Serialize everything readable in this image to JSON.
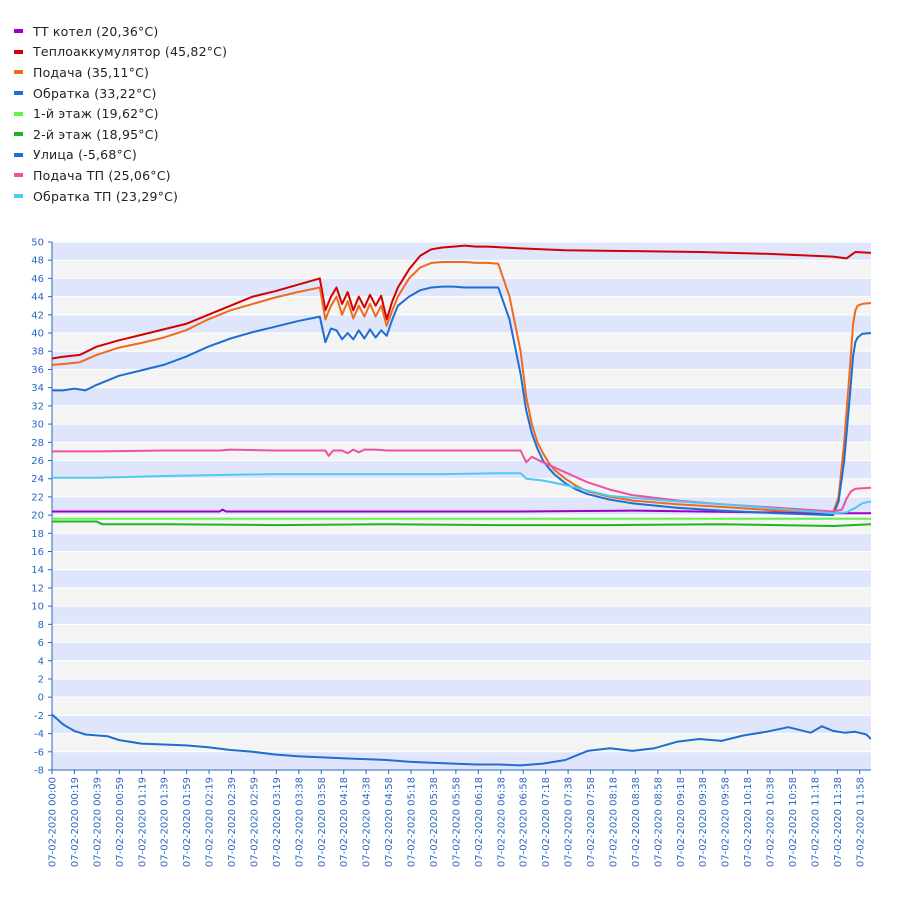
{
  "legend": [
    {
      "label": "ТТ котел (20,36°C)",
      "color": "#9b00c8"
    },
    {
      "label": "Теплоаккумулятор (45,82°C)",
      "color": "#d20000"
    },
    {
      "label": "Подача (35,11°C)",
      "color": "#f06a1e"
    },
    {
      "label": "Обратка (33,22°C)",
      "color": "#1e6ed2"
    },
    {
      "label": "1-й этаж (19,62°C)",
      "color": "#66f04c"
    },
    {
      "label": "2-й этаж (18,95°C)",
      "color": "#1eb41e"
    },
    {
      "label": "Улица (-5,68°C)",
      "color": "#1e6ed2"
    },
    {
      "label": "Подача ТП (25,06°C)",
      "color": "#f050a0"
    },
    {
      "label": "Обратка ТП (23,29°C)",
      "color": "#50c8f0"
    }
  ],
  "chart_data": {
    "type": "line",
    "ylim": [
      -8,
      50
    ],
    "y_ticks": [
      -8,
      -6,
      -4,
      -2,
      0,
      2,
      4,
      6,
      8,
      10,
      12,
      14,
      16,
      18,
      20,
      22,
      24,
      26,
      28,
      30,
      32,
      34,
      36,
      38,
      40,
      42,
      44,
      46,
      48,
      50
    ],
    "x_tick_labels": [
      "07-02-2020 00:00",
      "07-02-2020 00:19",
      "07-02-2020 00:39",
      "07-02-2020 00:59",
      "07-02-2020 01:19",
      "07-02-2020 01:39",
      "07-02-2020 01:59",
      "07-02-2020 02:19",
      "07-02-2020 02:39",
      "07-02-2020 02:59",
      "07-02-2020 03:19",
      "07-02-2020 03:38",
      "07-02-2020 03:58",
      "07-02-2020 04:18",
      "07-02-2020 04:38",
      "07-02-2020 04:58",
      "07-02-2020 05:18",
      "07-02-2020 05:38",
      "07-02-2020 05:58",
      "07-02-2020 06:18",
      "07-02-2020 06:38",
      "07-02-2020 06:58",
      "07-02-2020 07:18",
      "07-02-2020 07:38",
      "07-02-2020 07:58",
      "07-02-2020 08:18",
      "07-02-2020 08:38",
      "07-02-2020 08:58",
      "07-02-2020 09:18",
      "07-02-2020 09:38",
      "07-02-2020 09:58",
      "07-02-2020 10:18",
      "07-02-2020 10:38",
      "07-02-2020 10:58",
      "07-02-2020 11:18",
      "07-02-2020 11:38",
      "07-02-2020 11:58"
    ],
    "x_range_minutes": [
      0,
      734
    ],
    "grid": "horizontal-bands",
    "series": [
      {
        "name": "ТТ котел (20,36°C)",
        "color": "#9b00c8",
        "x": [
          0,
          60,
          150,
          153,
          156,
          200,
          300,
          420,
          520,
          580,
          640,
          700,
          734
        ],
        "y": [
          20.4,
          20.4,
          20.4,
          20.6,
          20.4,
          20.4,
          20.4,
          20.4,
          20.5,
          20.4,
          20.3,
          20.2,
          20.2
        ]
      },
      {
        "name": "Теплоаккумулятор (45,82°C)",
        "color": "#d20000",
        "x": [
          0,
          10,
          25,
          40,
          60,
          80,
          100,
          120,
          140,
          160,
          180,
          200,
          220,
          240,
          245,
          250,
          255,
          260,
          265,
          270,
          275,
          280,
          285,
          290,
          295,
          300,
          305,
          310,
          320,
          330,
          340,
          350,
          360,
          370,
          380,
          390,
          420,
          460,
          520,
          580,
          640,
          700,
          712,
          720,
          734
        ],
        "y": [
          37.2,
          37.4,
          37.6,
          38.5,
          39.2,
          39.8,
          40.4,
          41,
          42,
          43,
          44,
          44.6,
          45.3,
          46,
          42.5,
          44,
          45,
          43.2,
          44.5,
          42.5,
          44,
          42.8,
          44.2,
          43,
          44.1,
          41.5,
          43.5,
          45,
          47,
          48.5,
          49.2,
          49.4,
          49.5,
          49.6,
          49.5,
          49.5,
          49.3,
          49.1,
          49,
          48.9,
          48.7,
          48.4,
          48.2,
          48.9,
          48.8
        ]
      },
      {
        "name": "Подача (35,11°C)",
        "color": "#f06a1e",
        "x": [
          0,
          10,
          25,
          40,
          60,
          80,
          100,
          120,
          140,
          160,
          180,
          200,
          220,
          240,
          245,
          250,
          255,
          260,
          265,
          270,
          275,
          280,
          285,
          290,
          295,
          300,
          305,
          310,
          320,
          330,
          340,
          350,
          360,
          370,
          380,
          390,
          400,
          410,
          420,
          425,
          430,
          435,
          440,
          445,
          450,
          460,
          470,
          480,
          500,
          520,
          560,
          600,
          650,
          700,
          705,
          710,
          715,
          718,
          720,
          722,
          726,
          734
        ],
        "y": [
          36.5,
          36.6,
          36.8,
          37.6,
          38.4,
          38.9,
          39.5,
          40.3,
          41.5,
          42.5,
          43.2,
          43.9,
          44.5,
          45,
          41.5,
          43,
          44,
          42,
          43.5,
          41.6,
          43,
          41.8,
          43.2,
          41.8,
          43,
          40.8,
          42.5,
          44,
          46,
          47.2,
          47.7,
          47.8,
          47.8,
          47.8,
          47.7,
          47.7,
          47.6,
          44,
          38,
          33,
          30,
          28,
          26.8,
          25.8,
          25,
          24,
          23.2,
          22.6,
          22,
          21.6,
          21.2,
          20.9,
          20.5,
          20.3,
          22,
          28,
          36,
          41,
          42.5,
          43,
          43.2,
          43.3
        ]
      },
      {
        "name": "Обратка (33,22°C)",
        "color": "#1e6ed2",
        "x": [
          0,
          10,
          20,
          30,
          40,
          60,
          80,
          100,
          120,
          140,
          160,
          180,
          200,
          220,
          240,
          245,
          250,
          255,
          260,
          265,
          270,
          275,
          280,
          285,
          290,
          295,
          300,
          305,
          310,
          320,
          330,
          340,
          350,
          360,
          370,
          380,
          390,
          400,
          410,
          420,
          425,
          430,
          435,
          440,
          445,
          450,
          460,
          470,
          480,
          500,
          520,
          560,
          600,
          650,
          700,
          705,
          710,
          715,
          718,
          720,
          722,
          726,
          734
        ],
        "y": [
          33.7,
          33.7,
          33.9,
          33.7,
          34.3,
          35.3,
          35.9,
          36.5,
          37.4,
          38.5,
          39.4,
          40.1,
          40.7,
          41.3,
          41.8,
          39,
          40.5,
          40.3,
          39.3,
          40,
          39.3,
          40.3,
          39.4,
          40.4,
          39.5,
          40.3,
          39.7,
          41.5,
          43,
          44,
          44.7,
          45,
          45.1,
          45.1,
          45,
          45,
          45,
          45,
          41.5,
          35.5,
          31.5,
          29,
          27.3,
          26,
          25.2,
          24.5,
          23.5,
          22.8,
          22.3,
          21.7,
          21.3,
          20.8,
          20.5,
          20.2,
          20,
          21.5,
          26,
          33,
          37.5,
          39,
          39.5,
          39.9,
          40
        ]
      },
      {
        "name": "1-й этаж (19,62°C)",
        "color": "#66f04c",
        "x": [
          0,
          40,
          100,
          200,
          300,
          400,
          500,
          600,
          700,
          734
        ],
        "y": [
          19.6,
          19.6,
          19.6,
          19.6,
          19.6,
          19.6,
          19.6,
          19.6,
          19.6,
          19.6
        ]
      },
      {
        "name": "2-й этаж (18,95°C)",
        "color": "#1eb41e",
        "x": [
          0,
          30,
          40,
          45,
          60,
          100,
          200,
          300,
          400,
          500,
          600,
          700,
          734
        ],
        "y": [
          19.3,
          19.3,
          19.3,
          19,
          19,
          19,
          18.9,
          19,
          18.9,
          18.9,
          19,
          18.8,
          19
        ]
      },
      {
        "name": "Улица (-5,68°C)",
        "color": "#1e6ed2",
        "x": [
          0,
          10,
          20,
          30,
          40,
          50,
          60,
          80,
          100,
          120,
          140,
          160,
          180,
          200,
          220,
          240,
          260,
          280,
          300,
          320,
          340,
          360,
          380,
          400,
          420,
          440,
          460,
          480,
          500,
          520,
          540,
          560,
          580,
          600,
          620,
          640,
          660,
          680,
          690,
          700,
          710,
          720,
          730,
          734
        ],
        "y": [
          -1.9,
          -3,
          -3.7,
          -4.1,
          -4.2,
          -4.3,
          -4.7,
          -5.1,
          -5.2,
          -5.3,
          -5.5,
          -5.8,
          -6,
          -6.3,
          -6.5,
          -6.6,
          -6.7,
          -6.8,
          -6.9,
          -7.1,
          -7.2,
          -7.3,
          -7.4,
          -7.4,
          -7.5,
          -7.3,
          -6.9,
          -5.9,
          -5.6,
          -5.9,
          -5.6,
          -4.9,
          -4.6,
          -4.8,
          -4.2,
          -3.8,
          -3.3,
          -3.9,
          -3.2,
          -3.7,
          -3.9,
          -3.8,
          -4.1,
          -4.6
        ]
      },
      {
        "name": "Подача ТП (25,06°C)",
        "color": "#f050a0",
        "x": [
          0,
          40,
          100,
          150,
          160,
          200,
          245,
          248,
          252,
          260,
          265,
          270,
          275,
          280,
          290,
          300,
          350,
          400,
          420,
          425,
          430,
          440,
          460,
          480,
          500,
          520,
          560,
          600,
          650,
          700,
          708,
          712,
          716,
          720,
          734
        ],
        "y": [
          27,
          27,
          27.1,
          27.1,
          27.2,
          27.1,
          27.1,
          26.5,
          27.1,
          27.1,
          26.8,
          27.2,
          26.9,
          27.2,
          27.2,
          27.1,
          27.1,
          27.1,
          27.1,
          25.8,
          26.4,
          25.8,
          24.7,
          23.6,
          22.8,
          22.2,
          21.6,
          21.2,
          20.8,
          20.4,
          20.6,
          21.8,
          22.6,
          22.9,
          23
        ]
      },
      {
        "name": "Обратка ТП (23,29°C)",
        "color": "#50c8f0",
        "x": [
          0,
          40,
          100,
          150,
          200,
          250,
          300,
          350,
          400,
          420,
          425,
          440,
          460,
          480,
          500,
          520,
          560,
          600,
          650,
          700,
          712,
          720,
          726,
          734
        ],
        "y": [
          24.1,
          24.1,
          24.3,
          24.4,
          24.5,
          24.5,
          24.5,
          24.5,
          24.6,
          24.6,
          24,
          23.8,
          23.3,
          22.7,
          22.1,
          21.9,
          21.5,
          21.2,
          20.7,
          20.2,
          20.3,
          20.8,
          21.3,
          21.5
        ]
      }
    ]
  }
}
